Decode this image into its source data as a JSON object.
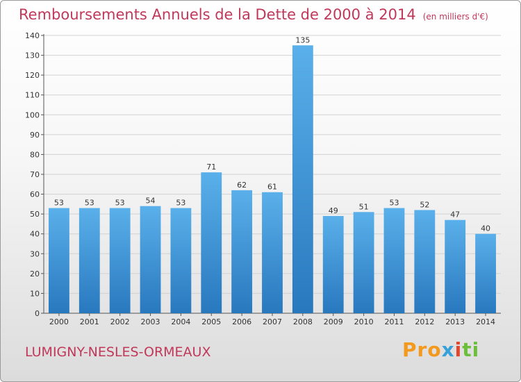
{
  "header": {
    "title": "Remboursements Annuels de la Dette de 2000 à 2014",
    "unit": "(en milliers d'€)"
  },
  "footer": {
    "town": "LUMIGNY-NESLES-ORMEAUX",
    "logo": [
      "Pro",
      "x",
      "i",
      "ti"
    ]
  },
  "colors": {
    "title": "#c0385a",
    "bar_top": "#5ab0ea",
    "bar_bottom": "#2878be"
  },
  "chart_data": {
    "type": "bar",
    "categories": [
      "2000",
      "2001",
      "2002",
      "2003",
      "2004",
      "2005",
      "2006",
      "2007",
      "2008",
      "2009",
      "2010",
      "2011",
      "2012",
      "2013",
      "2014"
    ],
    "values": [
      53,
      53,
      53,
      54,
      53,
      71,
      62,
      61,
      135,
      49,
      51,
      53,
      52,
      47,
      40
    ],
    "ylim": [
      0,
      140
    ],
    "yticks": [
      0,
      10,
      20,
      30,
      40,
      50,
      60,
      70,
      80,
      90,
      100,
      110,
      120,
      130,
      140
    ],
    "grid": true,
    "data_labels": true
  }
}
